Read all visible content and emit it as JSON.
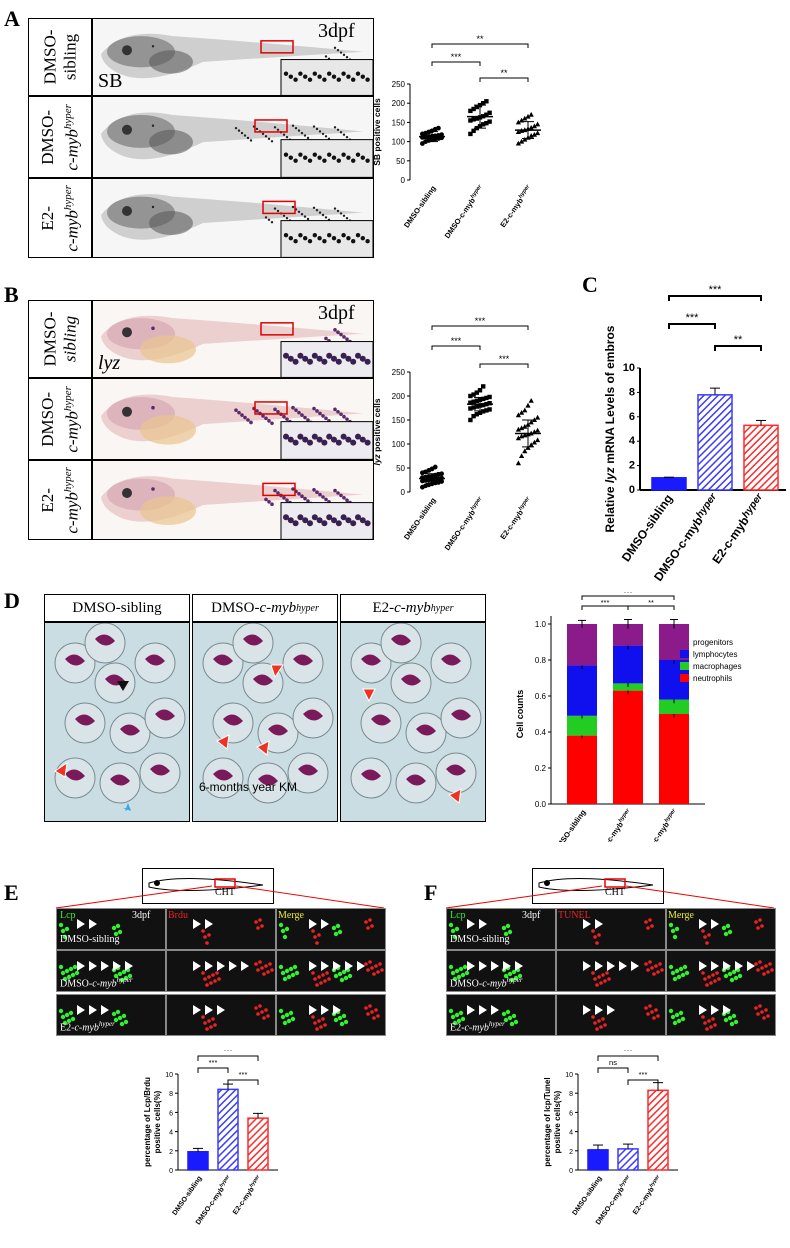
{
  "panels": {
    "A": {
      "label": "A",
      "stage": "3dpf",
      "marker": "SB",
      "rows": [
        {
          "line1": "DMSO-",
          "line2": "sibling"
        },
        {
          "line1": "DMSO-",
          "line2": "c-myb",
          "sup": "hyper"
        },
        {
          "line1": "E2-",
          "line2": "c-myb",
          "sup": "hyper"
        }
      ]
    },
    "B": {
      "label": "B",
      "stage": "3dpf",
      "marker": "lyz",
      "rows": [
        {
          "line1": "DMSO-",
          "line2": "sibling"
        },
        {
          "line1": "DMSO-",
          "line2": "c-myb",
          "sup": "hyper"
        },
        {
          "line1": "E2-",
          "line2": "c-myb",
          "sup": "hyper"
        }
      ]
    },
    "C": {
      "label": "C"
    },
    "D": {
      "label": "D",
      "headers": [
        "DMSO-sibling",
        "DMSO-c-myb",
        "E2-c-myb"
      ],
      "header_sup": [
        "",
        "hyper",
        "hyper"
      ],
      "caption": "6-months year  KM"
    },
    "E": {
      "label": "E",
      "region": "CHT",
      "channels": [
        "Lcp",
        "3dpf",
        "Brdu",
        "Merge"
      ],
      "rows": [
        "DMSO-sibling",
        "DMSO-c-myb",
        "E2-c-myb"
      ],
      "row_sup": [
        "",
        "hyper",
        "hyper"
      ]
    },
    "F": {
      "label": "F",
      "region": "CHT",
      "channels": [
        "Lcp",
        "3dpf",
        "TUNEL",
        "Merge"
      ],
      "rows": [
        "DMSO-sibling",
        "DMSO-c-myb",
        "E2-c-myb"
      ],
      "row_sup": [
        "",
        "hyper",
        "hyper"
      ]
    }
  },
  "chart_data": [
    {
      "id": "A-scatter",
      "type": "scatter",
      "ylabel": "SB positive cells",
      "ylim": [
        0,
        250
      ],
      "yticks": [
        0,
        50,
        100,
        150,
        200,
        250
      ],
      "categories": [
        "DMSO-sibling",
        "DMSO-c-myb",
        "E2-c-myb"
      ],
      "category_sup": [
        "",
        "hyper",
        "hyper"
      ],
      "means": [
        113,
        165,
        130
      ],
      "sd": [
        13,
        30,
        22
      ],
      "points": [
        [
          95,
          100,
          103,
          105,
          107,
          108,
          110,
          111,
          112,
          113,
          114,
          115,
          116,
          118,
          120,
          122,
          125,
          128,
          132,
          135
        ],
        [
          120,
          128,
          135,
          140,
          145,
          148,
          152,
          155,
          158,
          160,
          163,
          166,
          170,
          175,
          180,
          185,
          190,
          195,
          200,
          205
        ],
        [
          95,
          100,
          105,
          110,
          115,
          118,
          122,
          125,
          128,
          130,
          133,
          136,
          140,
          145,
          150,
          155,
          160,
          165,
          170
        ]
      ],
      "markers": [
        "circle",
        "square",
        "triangle"
      ],
      "significance": [
        {
          "from": 0,
          "to": 2,
          "label": "**"
        },
        {
          "from": 0,
          "to": 1,
          "label": "***"
        },
        {
          "from": 1,
          "to": 2,
          "label": "**"
        }
      ]
    },
    {
      "id": "B-scatter",
      "type": "scatter",
      "ylabel": "lyz positive cells",
      "ylim": [
        0,
        250
      ],
      "yticks": [
        0,
        50,
        100,
        150,
        200,
        250
      ],
      "categories": [
        "DMSO-sibling",
        "DMSO-c-myb",
        "E2-c-myb"
      ],
      "category_sup": [
        "",
        "hyper",
        "hyper"
      ],
      "means": [
        28,
        183,
        122
      ],
      "sd": [
        10,
        14,
        28
      ],
      "points": [
        [
          10,
          13,
          15,
          17,
          19,
          20,
          22,
          23,
          24,
          25,
          26,
          27,
          28,
          29,
          30,
          31,
          32,
          33,
          35,
          37,
          38,
          40,
          42,
          45,
          48,
          52
        ],
        [
          150,
          158,
          162,
          165,
          168,
          170,
          172,
          174,
          176,
          178,
          180,
          181,
          183,
          185,
          186,
          188,
          190,
          192,
          194,
          196,
          198,
          200,
          203,
          207,
          212,
          220
        ],
        [
          60,
          75,
          85,
          92,
          98,
          103,
          108,
          112,
          116,
          118,
          120,
          122,
          125,
          128,
          130,
          133,
          136,
          140,
          145,
          150,
          155,
          160,
          165,
          170,
          180,
          190
        ]
      ],
      "markers": [
        "circle",
        "square",
        "triangle"
      ],
      "significance": [
        {
          "from": 0,
          "to": 2,
          "label": "***"
        },
        {
          "from": 0,
          "to": 1,
          "label": "***"
        },
        {
          "from": 1,
          "to": 2,
          "label": "***"
        }
      ]
    },
    {
      "id": "C-bar",
      "type": "bar",
      "ylabel_pre": "Relative ",
      "ylabel_ital": "lyz",
      "ylabel_post": " mRNA Levels of embros",
      "ylim": [
        0,
        10
      ],
      "yticks": [
        0,
        2,
        4,
        6,
        8,
        10
      ],
      "categories": [
        "DMSO-sibling",
        "DMSO-c-myb",
        "E2-c-myb"
      ],
      "category_sup": [
        "",
        "hyper",
        "hyper"
      ],
      "values": [
        1,
        7.8,
        5.3
      ],
      "errors": [
        0.05,
        0.55,
        0.4
      ],
      "colors": [
        "#1a1aff",
        "#3b3bff",
        "#ff2a2a"
      ],
      "patterns": [
        "solid",
        "hatch",
        "hatch"
      ],
      "significance": [
        {
          "from": 0,
          "to": 2,
          "label": "***"
        },
        {
          "from": 0,
          "to": 1,
          "label": "***"
        },
        {
          "from": 1,
          "to": 2,
          "label": "**"
        }
      ]
    },
    {
      "id": "D-stacked",
      "type": "bar",
      "stacked": true,
      "ylabel": "Cell counts",
      "ylim": [
        0,
        1.0
      ],
      "yticks": [
        0,
        0.2,
        0.4,
        0.6,
        0.8,
        1.0
      ],
      "categories": [
        "DMSO-sibling",
        "DMSO-c-myb",
        "E2-c-myb"
      ],
      "category_sup": [
        "",
        "hyper",
        "hyper"
      ],
      "series": [
        {
          "name": "neutrophils",
          "color": "#ff0000",
          "values": [
            0.38,
            0.63,
            0.5
          ],
          "err": [
            0.015,
            0.02,
            0.02
          ]
        },
        {
          "name": "macrophages",
          "color": "#22cc22",
          "values": [
            0.11,
            0.04,
            0.08
          ],
          "err": [
            0.015,
            0.02,
            0.02
          ]
        },
        {
          "name": "lymphocytes",
          "color": "#1010ee",
          "values": [
            0.28,
            0.21,
            0.22
          ],
          "err": [
            0.02,
            0.02,
            0.02
          ]
        },
        {
          "name": "progenitors",
          "color": "#8b1a8b",
          "values": [
            0.23,
            0.12,
            0.2
          ],
          "err": [
            0.02,
            0.025,
            0.025
          ]
        }
      ],
      "legend_order": [
        "progenitors",
        "lymphocytes",
        "macrophages",
        "neutrophils"
      ],
      "legend_position": "top-right",
      "significance": [
        {
          "from": 0,
          "to": 2,
          "label": "***"
        },
        {
          "from": 0,
          "to": 1,
          "label": "***"
        },
        {
          "from": 1,
          "to": 2,
          "label": "**"
        }
      ]
    },
    {
      "id": "E-bar",
      "type": "bar",
      "ylabel_line1": "percentage of Lcp/Brdu",
      "ylabel_line2": "positive cells(%)",
      "ylim": [
        0,
        10
      ],
      "yticks": [
        0,
        2,
        4,
        6,
        8,
        10
      ],
      "categories": [
        "DMSO-sibling",
        "DMSO-c-myb",
        "E2-c-myb"
      ],
      "category_sup": [
        "",
        "hyper",
        "hyper"
      ],
      "values": [
        1.9,
        8.4,
        5.4
      ],
      "errors": [
        0.35,
        0.55,
        0.5
      ],
      "colors": [
        "#1a1aff",
        "#3b3bff",
        "#ff2a2a"
      ],
      "patterns": [
        "solid",
        "hatch",
        "hatch"
      ],
      "significance": [
        {
          "from": 0,
          "to": 2,
          "label": "***"
        },
        {
          "from": 0,
          "to": 1,
          "label": "***"
        },
        {
          "from": 1,
          "to": 2,
          "label": "***"
        }
      ]
    },
    {
      "id": "F-bar",
      "type": "bar",
      "ylabel_line1": "percentage of lcp/Tunel",
      "ylabel_line2": "positive cells(%)",
      "ylim": [
        0,
        10
      ],
      "yticks": [
        0,
        2,
        4,
        6,
        8,
        10
      ],
      "categories": [
        "DMSO-sibling",
        "DMSO-c-myb",
        "E2-c-myb"
      ],
      "category_sup": [
        "",
        "hyper",
        "hyper"
      ],
      "values": [
        2.1,
        2.2,
        8.3
      ],
      "errors": [
        0.5,
        0.5,
        0.8
      ],
      "colors": [
        "#1a1aff",
        "#3b3bff",
        "#ff2a2a"
      ],
      "patterns": [
        "solid",
        "hatch",
        "hatch"
      ],
      "significance": [
        {
          "from": 0,
          "to": 2,
          "label": "***"
        },
        {
          "from": 0,
          "to": 1,
          "label": "ns"
        },
        {
          "from": 1,
          "to": 2,
          "label": "***"
        }
      ]
    }
  ]
}
